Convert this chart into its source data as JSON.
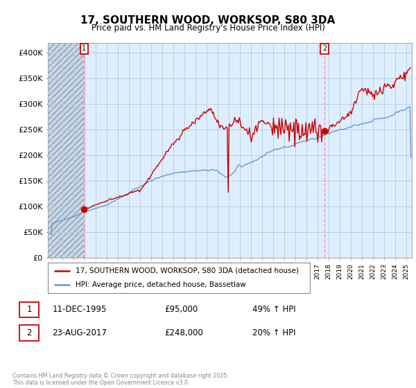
{
  "title": "17, SOUTHERN WOOD, WORKSOP, S80 3DA",
  "subtitle": "Price paid vs. HM Land Registry's House Price Index (HPI)",
  "ylim": [
    0,
    420000
  ],
  "yticks": [
    0,
    50000,
    100000,
    150000,
    200000,
    250000,
    300000,
    350000,
    400000
  ],
  "ytick_labels": [
    "£0",
    "£50K",
    "£100K",
    "£150K",
    "£200K",
    "£250K",
    "£300K",
    "£350K",
    "£400K"
  ],
  "legend_line1": "17, SOUTHERN WOOD, WORKSOP, S80 3DA (detached house)",
  "legend_line2": "HPI: Average price, detached house, Bassetlaw",
  "sale1_label": "1",
  "sale1_date": "11-DEC-1995",
  "sale1_price": "£95,000",
  "sale1_hpi": "49% ↑ HPI",
  "sale1_year": 1995.95,
  "sale1_val": 95000,
  "sale2_label": "2",
  "sale2_date": "23-AUG-2017",
  "sale2_price": "£248,000",
  "sale2_hpi": "20% ↑ HPI",
  "sale2_year": 2017.63,
  "sale2_val": 248000,
  "footer": "Contains HM Land Registry data © Crown copyright and database right 2025.\nThis data is licensed under the Open Government Licence v3.0.",
  "line_color_red": "#cc0000",
  "line_color_blue": "#6699cc",
  "chart_bg": "#ddeeff",
  "background_color": "#ffffff",
  "grid_color": "#bbccdd",
  "hatch_bg": "#c8d8e8",
  "xlim_start": 1992.7,
  "xlim_end": 2025.5,
  "hatch_end": 1995.95
}
